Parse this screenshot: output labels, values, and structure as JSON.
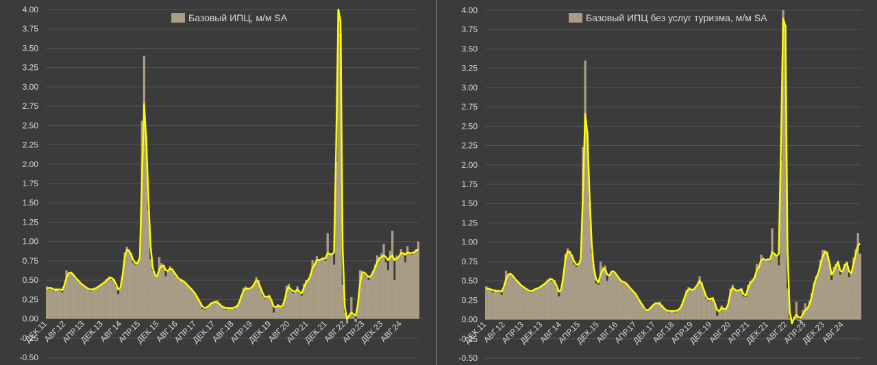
{
  "colors": {
    "background": "#3b3b3b",
    "bars": "#a99d86",
    "line": "#ffff00",
    "grid": "#555555",
    "text": "#d9d9d9",
    "divider": "#8a8a8a"
  },
  "chart_data": [
    {
      "type": "bar",
      "title": "",
      "legend": "Базовый ИПЦ, м/м SA",
      "legend_position": "top-center",
      "line_series": "smoothed trend (yellow)",
      "ylim": [
        -0.5,
        4.0
      ],
      "yticks": [
        "4.00",
        "3.75",
        "3.50",
        "3.25",
        "3.00",
        "2.75",
        "2.50",
        "2.25",
        "2.00",
        "1.75",
        "1.50",
        "1.25",
        "1.00",
        "0.75",
        "0.50",
        "0.25",
        "0.00",
        "-0.25",
        "-0.50"
      ],
      "xticks": [
        "ДЕК.11",
        "АВГ.12",
        "АПР.13",
        "ДЕК.13",
        "АВГ.14",
        "АПР.15",
        "ДЕК.15",
        "АВГ.16",
        "АПР.17",
        "ДЕК.17",
        "АВГ.18",
        "АПР.19",
        "ДЕК.19",
        "АВГ.20",
        "АПР.21",
        "ДЕК.21",
        "АВГ.22",
        "АПР.23",
        "ДЕК.23",
        "АВГ.24"
      ],
      "values": [
        0.42,
        0.38,
        0.4,
        0.36,
        0.4,
        0.38,
        0.36,
        0.34,
        0.42,
        0.63,
        0.59,
        0.6,
        0.57,
        0.52,
        0.5,
        0.47,
        0.44,
        0.42,
        0.4,
        0.38,
        0.36,
        0.38,
        0.4,
        0.41,
        0.42,
        0.44,
        0.46,
        0.48,
        0.52,
        0.55,
        0.5,
        0.52,
        0.42,
        0.32,
        0.39,
        0.56,
        0.86,
        0.93,
        0.9,
        0.85,
        0.72,
        0.7,
        0.74,
        0.8,
        2.56,
        3.4,
        2.36,
        1.41,
        0.77,
        0.62,
        0.56,
        0.55,
        0.8,
        0.72,
        0.7,
        0.55,
        0.62,
        0.68,
        0.65,
        0.6,
        0.55,
        0.5,
        0.52,
        0.48,
        0.47,
        0.44,
        0.4,
        0.38,
        0.35,
        0.3,
        0.27,
        0.22,
        0.13,
        0.12,
        0.14,
        0.17,
        0.2,
        0.22,
        0.22,
        0.24,
        0.2,
        0.16,
        0.14,
        0.12,
        0.15,
        0.14,
        0.13,
        0.15,
        0.16,
        0.22,
        0.3,
        0.4,
        0.42,
        0.4,
        0.38,
        0.41,
        0.46,
        0.54,
        0.5,
        0.4,
        0.3,
        0.26,
        0.28,
        0.31,
        0.24,
        0.08,
        0.14,
        0.19,
        0.16,
        0.14,
        0.25,
        0.43,
        0.45,
        0.36,
        0.33,
        0.34,
        0.42,
        0.33,
        0.3,
        0.45,
        0.5,
        0.52,
        0.58,
        0.76,
        0.72,
        0.81,
        0.76,
        0.78,
        0.8,
        0.75,
        1.11,
        0.83,
        0.82,
        0.7,
        2.04,
        4.0,
        3.7,
        0.44,
        0.08,
        -0.06,
        0.05,
        0.28,
        0.04,
        -0.04,
        0.2,
        0.63,
        0.62,
        0.58,
        0.55,
        0.5,
        0.55,
        0.62,
        0.7,
        0.82,
        0.8,
        0.85,
        0.97,
        0.73,
        0.63,
        0.88,
        1.14,
        0.5,
        0.82,
        0.79,
        0.9,
        0.85,
        0.73,
        0.94,
        0.84,
        0.83,
        0.85,
        0.9,
        1.0
      ],
      "smoothed": [
        0.39,
        0.4,
        0.4,
        0.38,
        0.37,
        0.38,
        0.38,
        0.37,
        0.43,
        0.53,
        0.59,
        0.6,
        0.58,
        0.54,
        0.51,
        0.48,
        0.45,
        0.43,
        0.41,
        0.39,
        0.38,
        0.38,
        0.39,
        0.4,
        0.42,
        0.44,
        0.46,
        0.48,
        0.51,
        0.53,
        0.53,
        0.5,
        0.45,
        0.38,
        0.4,
        0.56,
        0.79,
        0.89,
        0.88,
        0.83,
        0.76,
        0.72,
        0.72,
        0.79,
        1.8,
        2.78,
        2.3,
        1.55,
        0.94,
        0.66,
        0.57,
        0.55,
        0.64,
        0.68,
        0.69,
        0.63,
        0.62,
        0.65,
        0.64,
        0.6,
        0.56,
        0.52,
        0.5,
        0.49,
        0.47,
        0.44,
        0.41,
        0.38,
        0.35,
        0.31,
        0.26,
        0.21,
        0.16,
        0.14,
        0.15,
        0.17,
        0.2,
        0.21,
        0.22,
        0.21,
        0.19,
        0.16,
        0.15,
        0.14,
        0.14,
        0.14,
        0.14,
        0.15,
        0.16,
        0.21,
        0.29,
        0.36,
        0.39,
        0.39,
        0.39,
        0.41,
        0.45,
        0.5,
        0.47,
        0.4,
        0.33,
        0.28,
        0.29,
        0.29,
        0.24,
        0.16,
        0.15,
        0.17,
        0.16,
        0.16,
        0.23,
        0.36,
        0.41,
        0.38,
        0.36,
        0.35,
        0.38,
        0.35,
        0.33,
        0.4,
        0.47,
        0.5,
        0.55,
        0.66,
        0.7,
        0.76,
        0.76,
        0.77,
        0.78,
        0.78,
        0.85,
        0.84,
        0.83,
        0.86,
        2.3,
        4.0,
        3.85,
        0.9,
        0.15,
        0.0,
        0.04,
        0.08,
        0.06,
        0.04,
        0.18,
        0.45,
        0.6,
        0.6,
        0.57,
        0.54,
        0.55,
        0.6,
        0.66,
        0.74,
        0.78,
        0.8,
        0.82,
        0.8,
        0.76,
        0.8,
        0.82,
        0.76,
        0.78,
        0.8,
        0.85,
        0.85,
        0.83,
        0.86,
        0.85,
        0.85,
        0.86,
        0.88,
        0.9
      ]
    },
    {
      "type": "bar",
      "title": "",
      "legend": "Базовый ИПЦ без услуг туризма, м/м SA",
      "legend_position": "top-center",
      "line_series": "smoothed trend (yellow)",
      "ylim": [
        -0.5,
        4.0
      ],
      "yticks": [
        "4.00",
        "3.75",
        "3.50",
        "3.25",
        "3.00",
        "2.75",
        "2.50",
        "2.25",
        "2.00",
        "1.75",
        "1.50",
        "1.25",
        "1.00",
        "0.75",
        "0.50",
        "0.25",
        "0.00",
        "-0.25",
        "-0.50"
      ],
      "xticks": [
        "ДЕК.11",
        "АВГ.12",
        "АПР.13",
        "ДЕК.13",
        "АВГ.14",
        "АПР.15",
        "ДЕК.15",
        "АВГ.16",
        "АПР.17",
        "ДЕК.17",
        "АВГ.18",
        "АПР.19",
        "ДЕК.19",
        "АВГ.20",
        "АПР.21",
        "ДЕК.21",
        "АВГ.22",
        "АПР.23",
        "ДЕК.23",
        "АВГ.24"
      ],
      "values": [
        0.43,
        0.39,
        0.4,
        0.35,
        0.39,
        0.37,
        0.35,
        0.32,
        0.41,
        0.63,
        0.58,
        0.6,
        0.56,
        0.51,
        0.49,
        0.46,
        0.43,
        0.41,
        0.39,
        0.37,
        0.35,
        0.37,
        0.4,
        0.41,
        0.42,
        0.44,
        0.46,
        0.48,
        0.52,
        0.54,
        0.49,
        0.51,
        0.41,
        0.3,
        0.38,
        0.54,
        0.85,
        0.92,
        0.89,
        0.84,
        0.71,
        0.68,
        0.73,
        0.79,
        2.23,
        3.35,
        2.43,
        1.52,
        0.86,
        0.64,
        0.47,
        0.45,
        0.75,
        0.68,
        0.7,
        0.5,
        0.58,
        0.62,
        0.6,
        0.58,
        0.54,
        0.5,
        0.5,
        0.47,
        0.46,
        0.42,
        0.38,
        0.36,
        0.32,
        0.26,
        0.24,
        0.2,
        0.12,
        0.11,
        0.13,
        0.16,
        0.19,
        0.22,
        0.22,
        0.23,
        0.19,
        0.14,
        0.12,
        0.09,
        0.12,
        0.1,
        0.09,
        0.12,
        0.14,
        0.2,
        0.28,
        0.38,
        0.42,
        0.4,
        0.37,
        0.41,
        0.44,
        0.56,
        0.48,
        0.38,
        0.27,
        0.24,
        0.26,
        0.29,
        0.2,
        0.05,
        0.1,
        0.18,
        0.14,
        0.12,
        0.2,
        0.4,
        0.45,
        0.38,
        0.36,
        0.38,
        0.41,
        0.3,
        0.29,
        0.45,
        0.5,
        0.52,
        0.56,
        0.72,
        0.7,
        0.84,
        0.8,
        0.77,
        0.79,
        0.75,
        1.18,
        0.84,
        0.81,
        0.7,
        2.06,
        4.0,
        3.8,
        0.4,
        0.02,
        -0.03,
        0.03,
        0.23,
        -0.02,
        -0.05,
        0.12,
        0.21,
        0.16,
        0.24,
        0.34,
        0.48,
        0.56,
        0.58,
        0.77,
        0.9,
        0.9,
        0.88,
        0.72,
        0.51,
        0.68,
        0.72,
        0.76,
        0.58,
        0.61,
        0.72,
        0.75,
        0.55,
        0.62,
        0.8,
        0.91,
        1.12,
        0.85
      ],
      "smoothed": [
        0.4,
        0.4,
        0.39,
        0.38,
        0.37,
        0.37,
        0.37,
        0.36,
        0.42,
        0.52,
        0.58,
        0.59,
        0.57,
        0.53,
        0.5,
        0.47,
        0.44,
        0.42,
        0.4,
        0.38,
        0.37,
        0.37,
        0.39,
        0.4,
        0.41,
        0.43,
        0.45,
        0.47,
        0.5,
        0.52,
        0.52,
        0.49,
        0.44,
        0.36,
        0.38,
        0.54,
        0.78,
        0.88,
        0.87,
        0.82,
        0.75,
        0.71,
        0.71,
        0.78,
        1.65,
        2.66,
        2.4,
        1.6,
        0.96,
        0.65,
        0.52,
        0.48,
        0.58,
        0.64,
        0.66,
        0.58,
        0.57,
        0.62,
        0.62,
        0.59,
        0.55,
        0.51,
        0.49,
        0.48,
        0.46,
        0.42,
        0.39,
        0.36,
        0.33,
        0.28,
        0.23,
        0.19,
        0.14,
        0.12,
        0.13,
        0.16,
        0.19,
        0.21,
        0.21,
        0.2,
        0.17,
        0.14,
        0.12,
        0.11,
        0.11,
        0.11,
        0.11,
        0.12,
        0.14,
        0.19,
        0.27,
        0.35,
        0.39,
        0.39,
        0.38,
        0.41,
        0.45,
        0.5,
        0.46,
        0.38,
        0.3,
        0.26,
        0.27,
        0.27,
        0.21,
        0.12,
        0.11,
        0.15,
        0.14,
        0.13,
        0.2,
        0.34,
        0.41,
        0.39,
        0.37,
        0.38,
        0.39,
        0.33,
        0.31,
        0.4,
        0.47,
        0.5,
        0.54,
        0.64,
        0.68,
        0.77,
        0.78,
        0.77,
        0.78,
        0.77,
        0.87,
        0.85,
        0.82,
        0.85,
        2.25,
        3.89,
        3.8,
        0.88,
        0.1,
        -0.05,
        0.02,
        0.06,
        0.03,
        0.02,
        0.07,
        0.12,
        0.14,
        0.2,
        0.3,
        0.44,
        0.54,
        0.6,
        0.72,
        0.82,
        0.87,
        0.86,
        0.74,
        0.58,
        0.62,
        0.7,
        0.74,
        0.63,
        0.62,
        0.7,
        0.73,
        0.62,
        0.6,
        0.72,
        0.85,
        0.96,
        0.98
      ]
    }
  ]
}
